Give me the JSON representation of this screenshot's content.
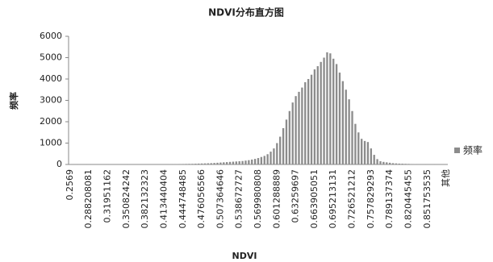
{
  "chart_data": {
    "type": "bar",
    "title": "NDVI分布直方图",
    "x_label": "NDVI",
    "y_label": "频率",
    "categories": [
      "0.2569",
      null,
      null,
      null,
      null,
      null,
      "0.288208081",
      null,
      null,
      null,
      null,
      null,
      "0.31951162",
      null,
      null,
      null,
      null,
      null,
      "0.350824242",
      null,
      null,
      null,
      null,
      null,
      "0.382132323",
      null,
      null,
      null,
      null,
      null,
      "0.413440404",
      null,
      null,
      null,
      null,
      null,
      "0.444748485",
      null,
      null,
      null,
      null,
      null,
      "0.476056566",
      null,
      null,
      null,
      null,
      null,
      "0.507364646",
      null,
      null,
      null,
      null,
      null,
      "0.538672727",
      null,
      null,
      null,
      null,
      null,
      "0.569980808",
      null,
      null,
      null,
      null,
      null,
      "0.601288889",
      null,
      null,
      null,
      null,
      null,
      "0.63259697",
      null,
      null,
      null,
      null,
      null,
      "0.663905051",
      null,
      null,
      null,
      null,
      null,
      "0.695213131",
      null,
      null,
      null,
      null,
      null,
      "0.726521212",
      null,
      null,
      null,
      null,
      null,
      "0.757829293",
      null,
      null,
      null,
      null,
      null,
      "0.789137374",
      null,
      null,
      null,
      null,
      null,
      "0.820445455",
      null,
      null,
      null,
      null,
      null,
      "0.851753535",
      null,
      null,
      null,
      null,
      null,
      "其他"
    ],
    "series": [
      {
        "name": "频率",
        "color": "#8c8c8c",
        "values": [
          2,
          3,
          2,
          3,
          2,
          3,
          2,
          3,
          2,
          3,
          3,
          4,
          3,
          4,
          3,
          4,
          3,
          4,
          3,
          4,
          5,
          5,
          6,
          6,
          7,
          7,
          8,
          8,
          9,
          10,
          10,
          12,
          14,
          16,
          18,
          20,
          22,
          25,
          28,
          30,
          35,
          40,
          45,
          50,
          55,
          60,
          70,
          80,
          90,
          100,
          110,
          120,
          130,
          140,
          150,
          160,
          180,
          200,
          230,
          260,
          300,
          350,
          400,
          480,
          600,
          750,
          1000,
          1300,
          1700,
          2100,
          2500,
          2900,
          3200,
          3400,
          3600,
          3850,
          4000,
          4200,
          4450,
          4600,
          4800,
          5000,
          5250,
          5200,
          4950,
          4700,
          4300,
          3900,
          3500,
          3050,
          2500,
          1900,
          1500,
          1200,
          1100,
          1050,
          750,
          450,
          250,
          150,
          120,
          100,
          80,
          60,
          50,
          40,
          35,
          30,
          25,
          20,
          15,
          10,
          8,
          5,
          3,
          2,
          1,
          0,
          0,
          0,
          0
        ]
      }
    ],
    "ylim": [
      0,
      6000
    ],
    "yticks": [
      0,
      1000,
      2000,
      3000,
      4000,
      5000,
      6000
    ],
    "grid": false,
    "legend": "right"
  }
}
